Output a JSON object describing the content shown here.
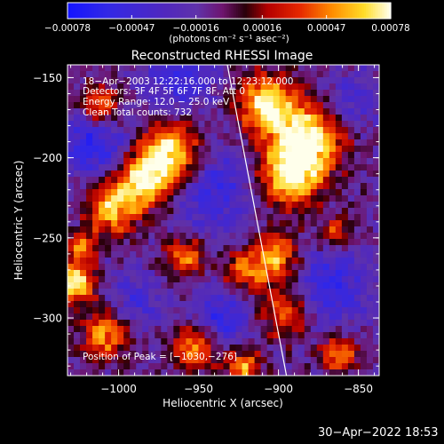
{
  "chart_data": {
    "type": "heatmap",
    "title": "Reconstructed RHESSI Image",
    "xlabel": "Heliocentric X (arcsec)",
    "ylabel": "Heliocentric Y (arcsec)",
    "xlim": [
      -1032,
      -837
    ],
    "ylim": [
      -336,
      -142
    ],
    "xticks": [
      -1000,
      -950,
      -900,
      -850
    ],
    "xtick_labels": [
      "−1000",
      "−950",
      "−900",
      "−850"
    ],
    "yticks": [
      -150,
      -200,
      -250,
      -300
    ],
    "ytick_labels": [
      "−150",
      "−200",
      "−250",
      "−300"
    ],
    "colorbar": {
      "range": [
        -0.00078,
        0.00078
      ],
      "ticks": [
        -0.00078,
        -0.00047,
        -0.00016,
        0.00016,
        0.00047,
        0.00078
      ],
      "tick_labels": [
        "−0.00078",
        "−0.00047",
        "−0.00016",
        "0.00016",
        "0.00047",
        "0.00078"
      ],
      "unit_label": "(photons cm⁻² s⁻¹ asec⁻²)"
    },
    "annotations": [
      "18−Apr−2003 12:22:16.000 to 12:23:12.000",
      "Detectors: 3F 4F 5F 6F 7F 8F, Att 0",
      "Energy Range: 12.0 − 25.0 keV",
      "Clean      Total counts: 732"
    ],
    "peak_label": "Position of Peak = [−1030,−276]",
    "peak": [
      -1030,
      -276
    ],
    "limb_line": {
      "x": [
        -932,
        -895
      ],
      "y": [
        -142,
        -336
      ]
    },
    "hot_regions": [
      {
        "x": -968,
        "y": -198,
        "strength": 0.95,
        "spread": 14
      },
      {
        "x": -985,
        "y": -215,
        "strength": 0.8,
        "spread": 12
      },
      {
        "x": -1005,
        "y": -232,
        "strength": 0.75,
        "spread": 12
      },
      {
        "x": -1012,
        "y": -168,
        "strength": 0.7,
        "spread": 10
      },
      {
        "x": -958,
        "y": -262,
        "strength": 0.65,
        "spread": 9
      },
      {
        "x": -922,
        "y": -272,
        "strength": 0.55,
        "spread": 10
      },
      {
        "x": -908,
        "y": -166,
        "strength": 0.85,
        "spread": 13
      },
      {
        "x": -882,
        "y": -188,
        "strength": 0.95,
        "spread": 16
      },
      {
        "x": -893,
        "y": -212,
        "strength": 0.85,
        "spread": 14
      },
      {
        "x": -901,
        "y": -262,
        "strength": 0.75,
        "spread": 11
      },
      {
        "x": -1028,
        "y": -278,
        "strength": 1.0,
        "spread": 9
      },
      {
        "x": -1008,
        "y": -310,
        "strength": 0.7,
        "spread": 11
      },
      {
        "x": -953,
        "y": -318,
        "strength": 0.75,
        "spread": 10
      },
      {
        "x": -922,
        "y": -330,
        "strength": 0.7,
        "spread": 8
      },
      {
        "x": -895,
        "y": -296,
        "strength": 0.65,
        "spread": 12
      },
      {
        "x": -862,
        "y": -322,
        "strength": 0.7,
        "spread": 8
      },
      {
        "x": -1023,
        "y": -256,
        "strength": 0.6,
        "spread": 6
      },
      {
        "x": -864,
        "y": -247,
        "strength": 0.5,
        "spread": 8
      }
    ],
    "cold_regions": [
      {
        "x": -1015,
        "y": -190,
        "strength": 0.55,
        "spread": 16
      },
      {
        "x": -960,
        "y": -150,
        "strength": 0.45,
        "spread": 14
      },
      {
        "x": -940,
        "y": -220,
        "strength": 0.45,
        "spread": 18
      },
      {
        "x": -870,
        "y": -280,
        "strength": 0.5,
        "spread": 18
      },
      {
        "x": -935,
        "y": -300,
        "strength": 0.45,
        "spread": 14
      },
      {
        "x": -855,
        "y": -165,
        "strength": 0.35,
        "spread": 12
      },
      {
        "x": -990,
        "y": -290,
        "strength": 0.35,
        "spread": 12
      }
    ]
  },
  "footer_timestamp": "30−Apr−2022 18:53"
}
